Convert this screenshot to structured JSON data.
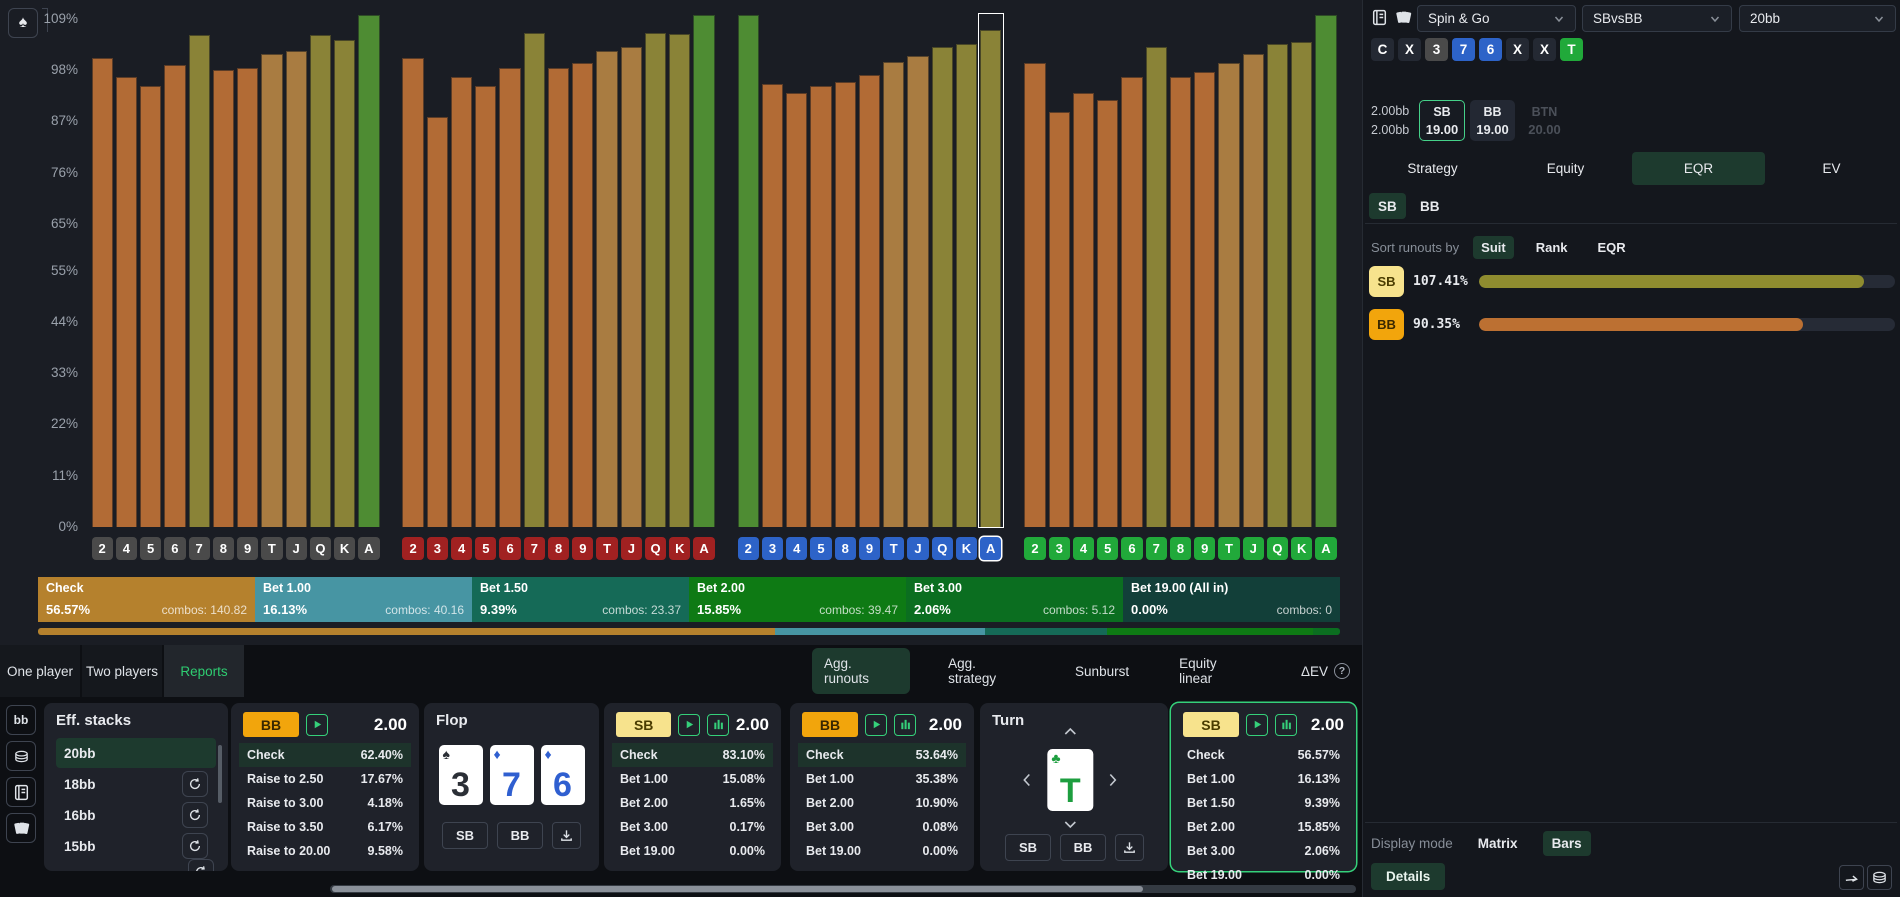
{
  "app": {
    "accent_green": "#35d07a",
    "selected_pill_bg": "#1d3a2e"
  },
  "chart_data": {
    "type": "bar",
    "ylabel": "EQR",
    "ylim": [
      0,
      109
    ],
    "y_ticks": [
      {
        "label": "109%",
        "value": 109
      },
      {
        "label": "98%",
        "value": 98
      },
      {
        "label": "87%",
        "value": 87
      },
      {
        "label": "76%",
        "value": 76
      },
      {
        "label": "65%",
        "value": 65
      },
      {
        "label": "55%",
        "value": 55
      },
      {
        "label": "44%",
        "value": 44
      },
      {
        "label": "33%",
        "value": 33
      },
      {
        "label": "22%",
        "value": 22
      },
      {
        "label": "11%",
        "value": 11
      },
      {
        "label": "0%",
        "value": 0
      }
    ],
    "tone_colors": {
      "orange": "#b26b35",
      "tan": "#a97c41",
      "olive": "#8a8337",
      "green": "#4e8c33"
    },
    "suit_label_colors": {
      "spades": "#4a4a4a",
      "hearts": "#a12121",
      "diamonds": "#2d63c8",
      "clubs": "#21a93a"
    },
    "groups": [
      {
        "suit": "spades",
        "cards": [
          "2",
          "4",
          "5",
          "6",
          "7",
          "8",
          "9",
          "T",
          "J",
          "Q",
          "K",
          "A"
        ],
        "values": [
          100.5,
          96.5,
          94.5,
          99,
          105.5,
          98,
          98.5,
          101.5,
          102,
          105.5,
          104.5,
          109.8
        ],
        "tones": [
          "orange",
          "orange",
          "orange",
          "orange",
          "olive",
          "orange",
          "orange",
          "tan",
          "tan",
          "olive",
          "olive",
          "green"
        ]
      },
      {
        "suit": "hearts",
        "cards": [
          "2",
          "3",
          "4",
          "5",
          "6",
          "7",
          "8",
          "9",
          "T",
          "J",
          "Q",
          "K",
          "A"
        ],
        "values": [
          100.5,
          88,
          96.5,
          94.5,
          98.5,
          106,
          98.5,
          99.5,
          102,
          103,
          106,
          105.8,
          109.8
        ],
        "tones": [
          "orange",
          "orange",
          "orange",
          "orange",
          "orange",
          "olive",
          "orange",
          "orange",
          "tan",
          "tan",
          "olive",
          "olive",
          "green"
        ]
      },
      {
        "suit": "diamonds",
        "cards": [
          "2",
          "3",
          "4",
          "5",
          "8",
          "9",
          "T",
          "J",
          "Q",
          "K",
          "A"
        ],
        "values": [
          109.8,
          95,
          93,
          94.5,
          95.5,
          97,
          99.8,
          101,
          103,
          103.5,
          106.5
        ],
        "tones": [
          "green",
          "orange",
          "orange",
          "orange",
          "orange",
          "orange",
          "tan",
          "tan",
          "olive",
          "olive",
          "olive"
        ]
      },
      {
        "suit": "clubs",
        "cards": [
          "2",
          "3",
          "4",
          "5",
          "6",
          "7",
          "8",
          "9",
          "T",
          "J",
          "Q",
          "K",
          "A"
        ],
        "values": [
          99.5,
          89,
          93,
          91.5,
          96.5,
          103,
          96.5,
          97.5,
          99.5,
          101.5,
          103.5,
          104,
          109.8
        ],
        "tones": [
          "orange",
          "orange",
          "orange",
          "orange",
          "orange",
          "olive",
          "orange",
          "orange",
          "tan",
          "tan",
          "olive",
          "olive",
          "green"
        ]
      }
    ],
    "selected_card": {
      "suit": "diamonds",
      "card": "A"
    }
  },
  "strategy_strip": {
    "segments": [
      {
        "label": "Check",
        "pct": "56.57%",
        "combos": "combos: 140.82",
        "color": "#b5812d",
        "share": 56.57
      },
      {
        "label": "Bet 1.00",
        "pct": "16.13%",
        "combos": "combos: 40.16",
        "color": "#4795a3",
        "share": 16.13
      },
      {
        "label": "Bet 1.50",
        "pct": "9.39%",
        "combos": "combos: 23.37",
        "color": "#156a57",
        "share": 9.39
      },
      {
        "label": "Bet 2.00",
        "pct": "15.85%",
        "combos": "combos: 39.47",
        "color": "#0e7a14",
        "share": 15.85
      },
      {
        "label": "Bet 3.00",
        "pct": "2.06%",
        "combos": "combos: 5.12",
        "color": "#0b6e20",
        "share": 2.06
      },
      {
        "label": "Bet 19.00 (All in)",
        "pct": "0.00%",
        "combos": "combos: 0",
        "color": "#123f39",
        "share": 0
      }
    ]
  },
  "tabs": {
    "left": [
      {
        "label": "One player"
      },
      {
        "label": "Two players"
      },
      {
        "label": "Reports",
        "active": true
      }
    ],
    "right": [
      {
        "label": "Agg. runouts",
        "active": true
      },
      {
        "label": "Agg. strategy"
      },
      {
        "label": "Sunburst"
      },
      {
        "label": "Equity linear"
      },
      {
        "label": "ΔEV",
        "help": true
      }
    ]
  },
  "rail": {
    "bb_label": "bb"
  },
  "badge_colors": {
    "bb": {
      "bg": "#f2a50c",
      "fg": "#3a2800"
    },
    "sb": {
      "bg": "#f7e38d",
      "fg": "#4a3c00"
    }
  },
  "card_colors": {
    "spade": "#2b2f36",
    "diamond": "#2f5fd0",
    "club": "#1d9e3f"
  },
  "suit_glyphs": {
    "spade": "♠",
    "diamond": "♦",
    "club": "♣",
    "heart": "♥"
  },
  "eff_stacks": {
    "title": "Eff. stacks",
    "items": [
      {
        "label": "20bb",
        "selected": true
      },
      {
        "label": "18bb"
      },
      {
        "label": "16bb"
      },
      {
        "label": "15bb"
      }
    ]
  },
  "panels": [
    {
      "kind": "strategy",
      "badge": "BB",
      "badge_color": "bb",
      "icons": [
        "play"
      ],
      "amount": "2.00",
      "rows": [
        [
          "Check",
          "62.40%",
          true
        ],
        [
          "Raise to 2.50",
          "17.67%",
          false
        ],
        [
          "Raise to 3.00",
          "4.18%",
          false
        ],
        [
          "Raise to 3.50",
          "6.17%",
          false
        ],
        [
          "Raise to 20.00",
          "9.58%",
          false
        ]
      ]
    },
    {
      "kind": "board",
      "title": "Flop",
      "cards": [
        {
          "rank": "3",
          "suit": "spade"
        },
        {
          "rank": "7",
          "suit": "diamond"
        },
        {
          "rank": "6",
          "suit": "diamond"
        }
      ],
      "buttons": [
        "SB",
        "BB"
      ]
    },
    {
      "kind": "strategy",
      "badge": "SB",
      "badge_color": "sb",
      "icons": [
        "play",
        "ranges"
      ],
      "amount": "2.00",
      "rows": [
        [
          "Check",
          "83.10%",
          true
        ],
        [
          "Bet 1.00",
          "15.08%",
          false
        ],
        [
          "Bet 2.00",
          "1.65%",
          false
        ],
        [
          "Bet 3.00",
          "0.17%",
          false
        ],
        [
          "Bet 19.00",
          "0.00%",
          false
        ]
      ]
    },
    {
      "kind": "strategy",
      "badge": "BB",
      "badge_color": "bb",
      "icons": [
        "play",
        "ranges"
      ],
      "amount": "2.00",
      "rows": [
        [
          "Check",
          "53.64%",
          true
        ],
        [
          "Bet 1.00",
          "35.38%",
          false
        ],
        [
          "Bet 2.00",
          "10.90%",
          false
        ],
        [
          "Bet 3.00",
          "0.08%",
          false
        ],
        [
          "Bet 19.00",
          "0.00%",
          false
        ]
      ]
    },
    {
      "kind": "turn",
      "title": "Turn",
      "card": {
        "rank": "T",
        "suit": "club"
      },
      "buttons": [
        "SB",
        "BB"
      ]
    },
    {
      "kind": "strategy",
      "badge": "SB",
      "badge_color": "sb",
      "icons": [
        "play",
        "ranges"
      ],
      "amount": "2.00",
      "selected": true,
      "rows": [
        [
          "Check",
          "56.57%",
          false
        ],
        [
          "Bet 1.00",
          "16.13%",
          false
        ],
        [
          "Bet 1.50",
          "9.39%",
          false
        ],
        [
          "Bet 2.00",
          "15.85%",
          false
        ],
        [
          "Bet 3.00",
          "2.06%",
          false
        ],
        [
          "Bet 19.00",
          "0.00%",
          false
        ]
      ]
    }
  ],
  "sidebar": {
    "dropdowns": [
      {
        "value": "Spin & Go"
      },
      {
        "value": "SBvsBB"
      },
      {
        "value": "20bb"
      }
    ],
    "action_line": [
      {
        "label": "C",
        "type": "action"
      },
      {
        "label": "X",
        "type": "action"
      },
      {
        "label": "3",
        "type": "spade"
      },
      {
        "label": "7",
        "type": "diamond"
      },
      {
        "label": "6",
        "type": "diamond"
      },
      {
        "label": "X",
        "type": "action"
      },
      {
        "label": "X",
        "type": "action"
      },
      {
        "label": "T",
        "type": "club"
      }
    ],
    "chip_colors": {
      "action": "#242933",
      "spade": "#4a4a4a",
      "diamond": "#2d63c8",
      "club": "#21a93a"
    },
    "pot_lines": [
      "2.00bb",
      "2.00bb"
    ],
    "seats": [
      {
        "name": "SB",
        "stack": "19.00",
        "selected": true
      },
      {
        "name": "BB",
        "stack": "19.00"
      },
      {
        "name": "BTN",
        "stack": "20.00",
        "dim": true
      }
    ],
    "view_tabs": [
      {
        "label": "Strategy"
      },
      {
        "label": "Equity"
      },
      {
        "label": "EQR",
        "active": true
      },
      {
        "label": "EV"
      }
    ],
    "player_toggle": [
      {
        "label": "SB",
        "active": true
      },
      {
        "label": "BB"
      }
    ],
    "sort": {
      "label": "Sort runouts by",
      "options": [
        {
          "label": "Suit",
          "active": true
        },
        {
          "label": "Rank"
        },
        {
          "label": "EQR"
        }
      ]
    },
    "eqr_bars": [
      {
        "badge": "SB",
        "badge_color": "sb",
        "value": "107.41%",
        "fill_pct": 92.5,
        "fill_color": "#8f8c2f"
      },
      {
        "badge": "BB",
        "badge_color": "bb",
        "value": "90.35%",
        "fill_pct": 78,
        "fill_color": "#bc7032"
      }
    ],
    "display_mode": {
      "label": "Display mode",
      "options": [
        {
          "label": "Matrix"
        },
        {
          "label": "Bars",
          "active": true
        }
      ]
    },
    "details_label": "Details"
  }
}
